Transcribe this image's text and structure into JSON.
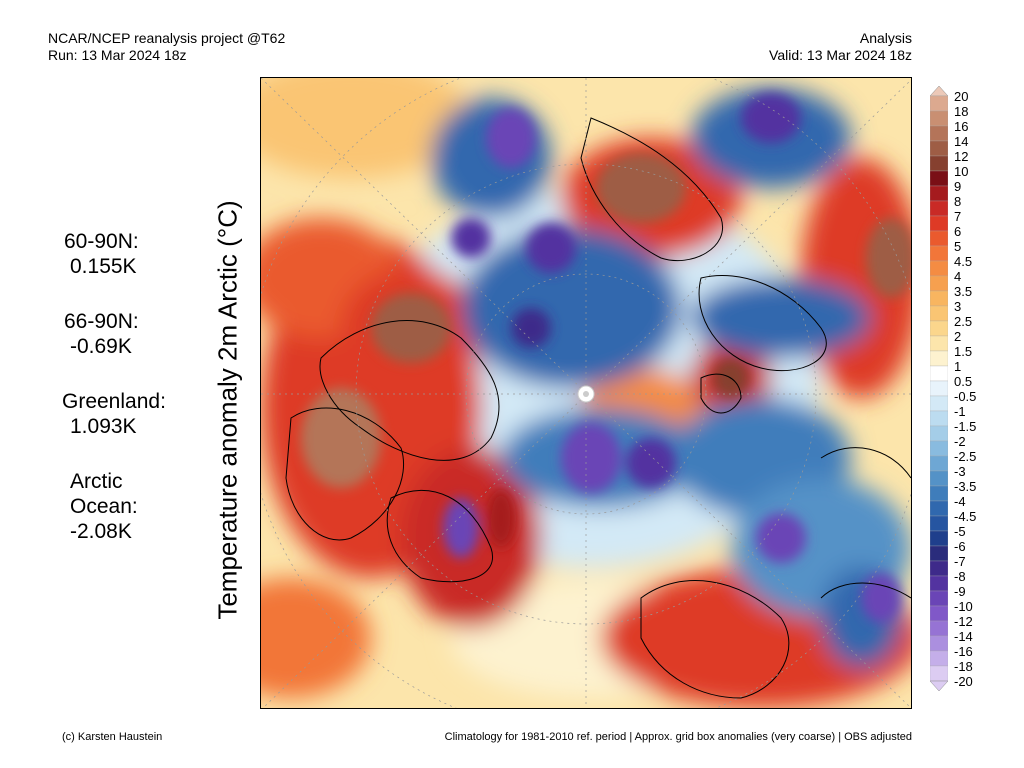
{
  "header": {
    "project": "NCAR/NCEP reanalysis project @T62",
    "run": "Run: 13 Mar 2024 18z",
    "analysis": "Analysis",
    "valid": "Valid: 13 Mar 2024 18z"
  },
  "title": "Temperature anomaly 2m Arctic (°C)",
  "stats": [
    {
      "label": "60-90N:",
      "value": "0.155K"
    },
    {
      "label": "66-90N:",
      "value": "-0.69K"
    },
    {
      "label": "Greenland:",
      "value": "1.093K"
    },
    {
      "label_line1": "Arctic",
      "label_line2": "Ocean:",
      "value": "-2.08K"
    }
  ],
  "colorbar": {
    "labels": [
      "20",
      "18",
      "16",
      "14",
      "12",
      "10",
      "9",
      "8",
      "7",
      "6",
      "5",
      "4.5",
      "4",
      "3.5",
      "3",
      "2.5",
      "2",
      "1.5",
      "1",
      "0.5",
      "-0.5",
      "-1",
      "-1.5",
      "-2",
      "-2.5",
      "-3",
      "-3.5",
      "-4",
      "-4.5",
      "-5",
      "-6",
      "-7",
      "-8",
      "-9",
      "-10",
      "-12",
      "-14",
      "-16",
      "-18",
      "-20"
    ],
    "colors": [
      "#ecc9b8",
      "#dca98f",
      "#c98f72",
      "#b47459",
      "#9e5d45",
      "#86402f",
      "#7a0f16",
      "#a51b1e",
      "#c92a26",
      "#de3a26",
      "#ea5a2e",
      "#f27639",
      "#f48c43",
      "#f6a04f",
      "#f8b560",
      "#fac573",
      "#fbd68c",
      "#fce5ab",
      "#fdf2cf",
      "#ffffff",
      "#e8f3fb",
      "#d3e9f6",
      "#bcdcf0",
      "#a4cde8",
      "#89bbdf",
      "#6ea7d4",
      "#5492c7",
      "#3f7dbb",
      "#3068ae",
      "#2655a1",
      "#1f3f8c",
      "#2a2c7c",
      "#3e2a8a",
      "#5333a0",
      "#6a45b6",
      "#8058c8",
      "#9673d4",
      "#ab8fdf",
      "#c4aee9",
      "#dcccf2"
    ]
  },
  "footer": {
    "credit": "(c) Karsten Haustein",
    "note": "Climatology for 1981-2010 ref. period | Approx. grid box anomalies (very coarse) | OBS adjusted"
  },
  "map": {
    "pole_marker": "north-pole-marker",
    "colors": {
      "warm": "#de3a26",
      "hot": "#9e5d45",
      "cold": "#2655a1",
      "very_cold": "#6a45b6",
      "mild": "#fbd68c",
      "cool": "#a4cde8"
    }
  }
}
